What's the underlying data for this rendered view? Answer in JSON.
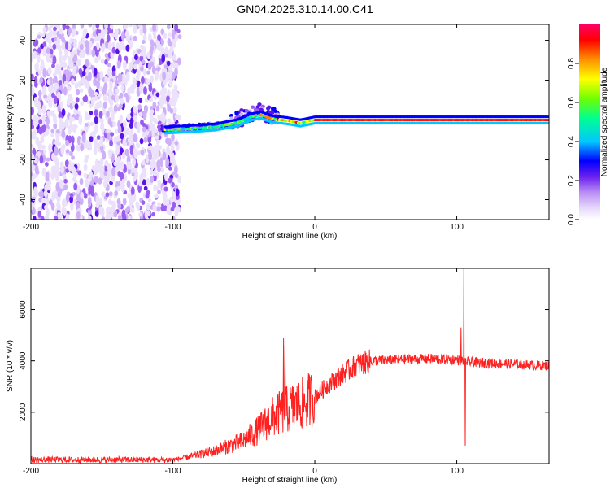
{
  "title": "GN04.2025.310.14.00.C41",
  "chart_data": [
    {
      "type": "heatmap",
      "name": "spectrogram",
      "xlabel": "Height of straight line (km)",
      "ylabel": "Frequency (Hz)",
      "xlim": [
        -200,
        165
      ],
      "ylim": [
        -50,
        48
      ],
      "xticks": [
        -200,
        -100,
        0,
        100
      ],
      "yticks": [
        -40,
        -20,
        0,
        20,
        40
      ],
      "colorbar": {
        "label": "Normalized spectral amplitude",
        "range": [
          0,
          1
        ],
        "ticks": [
          0.0,
          0.2,
          0.4,
          0.6,
          0.8
        ]
      },
      "regions": [
        {
          "desc": "broadband noise",
          "x": [
            -200,
            -100
          ],
          "y": [
            -50,
            48
          ],
          "amplitude": 0.1
        },
        {
          "desc": "signal onset",
          "x": [
            -100,
            -30
          ],
          "y": [
            -8,
            20
          ],
          "amplitude": 0.45
        },
        {
          "desc": "carrier line",
          "x": [
            0,
            165
          ],
          "y": [
            -1,
            1
          ],
          "amplitude": 1.0
        }
      ],
      "carrier_curve": {
        "x": [
          -105,
          -90,
          -70,
          -55,
          -45,
          -38,
          -30,
          -20,
          -10,
          0,
          50,
          100,
          165
        ],
        "freq": [
          -5,
          -4.5,
          -3.5,
          -1.5,
          1.5,
          2.5,
          0.5,
          -0.3,
          -1.5,
          0,
          0,
          0,
          0
        ]
      }
    },
    {
      "type": "line",
      "name": "snr",
      "xlabel": "Height of straight line (km)",
      "ylabel": "SNR (10 * v/v)",
      "xlim": [
        -200,
        165
      ],
      "ylim": [
        0,
        7600
      ],
      "xticks": [
        -200,
        -100,
        0,
        100
      ],
      "yticks": [
        2000,
        4000,
        6000
      ],
      "color": "#ff2020",
      "envelope": {
        "x": [
          -200,
          -100,
          -90,
          -70,
          -50,
          -40,
          -30,
          -20,
          -10,
          0,
          10,
          20,
          30,
          40,
          60,
          80,
          95,
          100,
          104,
          110,
          130,
          165
        ],
        "y": [
          150,
          150,
          250,
          500,
          900,
          1300,
          1800,
          2100,
          2300,
          2600,
          3100,
          3500,
          3850,
          4000,
          4050,
          4080,
          4050,
          4050,
          4000,
          3950,
          3900,
          3800
        ]
      },
      "spikes": [
        {
          "x": -22,
          "y": 4900
        },
        {
          "x": -21,
          "y": 4600
        },
        {
          "x": 103,
          "y": 5300
        },
        {
          "x": 105,
          "y": 7600
        },
        {
          "x": 106,
          "y": 700
        }
      ]
    }
  ],
  "colors": {
    "colormap": [
      "#ece1fb",
      "#cdb0f7",
      "#9b5cf2",
      "#5a14ea",
      "#0000ff",
      "#00c8ff",
      "#00ff80",
      "#80ff00",
      "#ffff00",
      "#ff8000",
      "#ff0000",
      "#ff0066"
    ]
  }
}
